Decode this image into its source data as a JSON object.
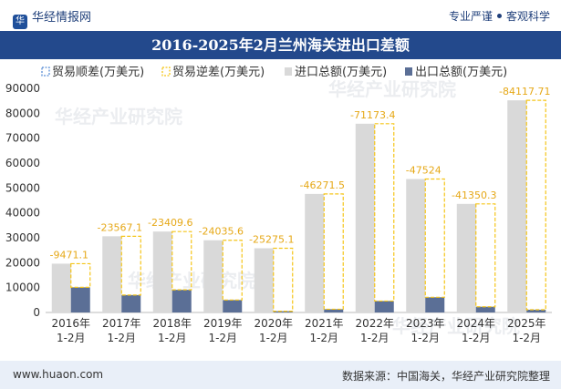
{
  "header": {
    "brand": "华经情报网",
    "slogan_left": "专业严谨",
    "slogan_right": "客观科学"
  },
  "title": "2016-2025年2月兰州海关进出口差额",
  "footer": {
    "site": "www.huaon.com",
    "source": "数据来源：中国海关，华经产业研究院整理"
  },
  "watermark": {
    "cn": "华经产业研究院",
    "url": "www.huaon.com"
  },
  "colors": {
    "import": "#d9d9d9",
    "export": "#5b6f96",
    "surplus": "#5b8fd6",
    "deficit": "#f5c518",
    "deficit_label": "#e6a817",
    "title_bg": "#23498c"
  },
  "chart_data": {
    "type": "bar",
    "categories": [
      "2016年\n1-2月",
      "2017年\n1-2月",
      "2018年\n1-2月",
      "2019年\n1-2月",
      "2020年\n1-2月",
      "2021年\n1-2月",
      "2022年\n1-2月",
      "2023年\n1-2月",
      "2024年\n1-2月",
      "2025年\n1-2月"
    ],
    "legend": [
      "贸易顺差(万美元)",
      "贸易逆差(万美元)",
      "进口总额(万美元)",
      "出口总额(万美元)"
    ],
    "series": [
      {
        "name": "进口总额(万美元)",
        "values": [
          19600,
          30600,
          32500,
          29000,
          25800,
          47600,
          75800,
          53600,
          43600,
          85200
        ]
      },
      {
        "name": "出口总额(万美元)",
        "values": [
          10100,
          7000,
          9100,
          5000,
          500,
          1300,
          4600,
          6100,
          2300,
          1100
        ]
      },
      {
        "name": "贸易逆差(万美元)",
        "values": [
          -9471.1,
          -23567.1,
          -23409.6,
          -24035.6,
          -25275.1,
          -46271.5,
          -71173.4,
          -47524,
          -41350.3,
          -84117.71
        ]
      },
      {
        "name": "贸易顺差(万美元)",
        "values": [
          null,
          null,
          null,
          null,
          null,
          null,
          null,
          null,
          null,
          null
        ]
      }
    ],
    "data_labels": [
      "-9471.1",
      "-23567.1",
      "-23409.6",
      "-24035.6",
      "-25275.1",
      "-46271.5",
      "-71173.4",
      "-47524",
      "-41350.3",
      "-84117.71"
    ],
    "y_ticks": [
      "0",
      "10000",
      "20000",
      "30000",
      "40000",
      "50000",
      "60000",
      "70000",
      "80000",
      "90000"
    ],
    "ylim": [
      0,
      90000
    ],
    "legend_position": "top-left"
  }
}
